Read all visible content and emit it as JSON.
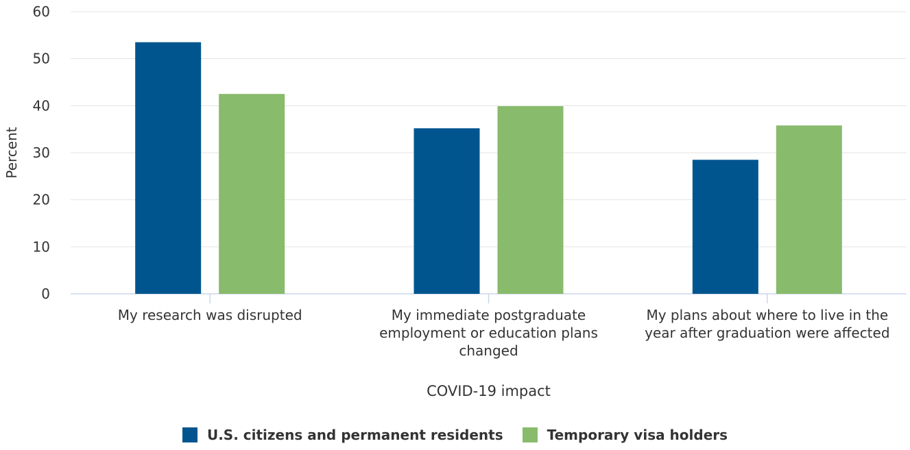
{
  "chart_data": {
    "type": "bar",
    "xlabel": "COVID-19 impact",
    "ylabel": "Percent",
    "ylim": [
      0,
      60
    ],
    "yticks": [
      0,
      10,
      20,
      30,
      40,
      50,
      60
    ],
    "grid": true,
    "legend_position": "bottom-center",
    "categories": [
      [
        "My research was disrupted"
      ],
      [
        "My immediate postgraduate",
        "employment or education plans",
        "changed"
      ],
      [
        "My plans about where to live in the",
        "year after graduation were affected"
      ]
    ],
    "series": [
      {
        "name": "U.S. citizens and permanent residents",
        "color": "#00558f",
        "values": [
          53.5,
          35.2,
          28.5
        ]
      },
      {
        "name": "Temporary visa holders",
        "color": "#88bb6b",
        "values": [
          42.5,
          39.9,
          35.8
        ]
      }
    ]
  }
}
